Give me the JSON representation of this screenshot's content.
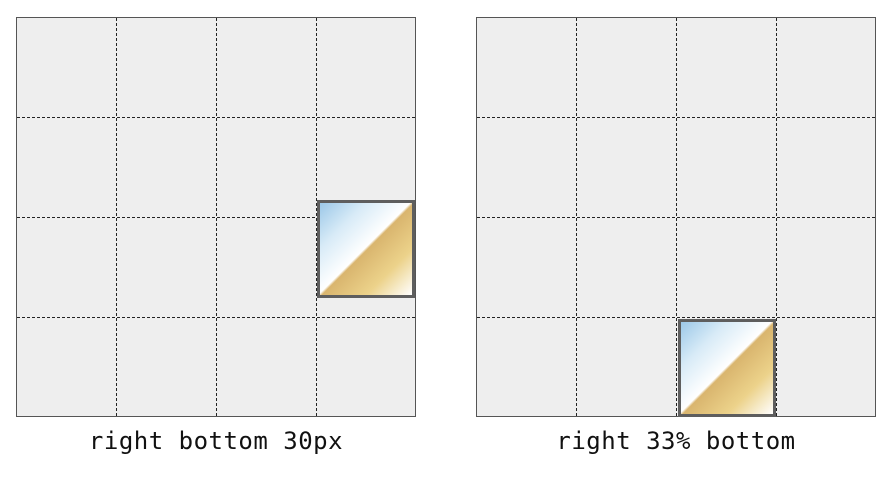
{
  "demos": [
    {
      "caption": "right bottom 30px"
    },
    {
      "caption": "right 33% bottom"
    }
  ]
}
